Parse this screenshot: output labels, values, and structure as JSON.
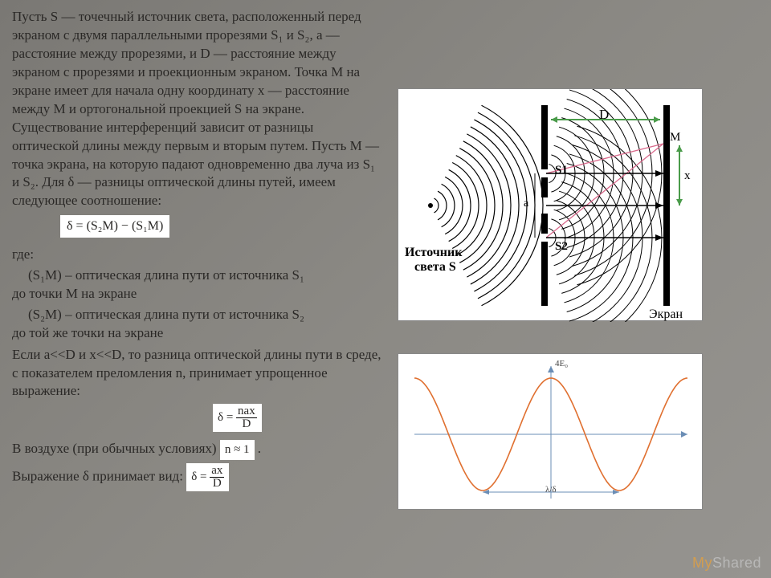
{
  "text": {
    "p1": "Пусть S — точечный источник света, расположенный перед экраном с двумя параллельными прорезями S₁ и S₂, a — расстояние между прорезями, и D — расстояние между экраном с прорезями и проекционным экраном. Точка M на экране имеет для начала одну координату x — расстояние между M и ортогональной проекцией S на экране. Существование интерференций зависит от разницы оптической длины между первым и вторым путем. Пусть M — точка экрана, на которую падают одновременно два луча из S₁ и S₂. Для δ — разницы оптической длины путей, имеем следующее соотношение:",
    "formula1": "δ = (S₂M) − (S₁M)",
    "where": "где:",
    "def1a": "(S₁M) – оптическая длина пути от источника S₁",
    "def1b": "до точки M на экране",
    "def2a": "(S₂M) – оптическая длина пути от источника S₂",
    "def2b": "до той же точки на экране",
    "p2": "Если a<<D и x<<D, то разница оптической длины пути в среде, с показателем преломления n, принимает упрощенное выражение:",
    "p3a": "В воздухе (при обычных условиях)",
    "p3c": ".",
    "p4": "Выражение δ принимает вид:",
    "n_approx": "n ≈ 1",
    "frac2_num": "nax",
    "frac2_den": "D",
    "frac3_num": "ax",
    "frac3_den": "D",
    "delta_eq": "δ = "
  },
  "diagram1": {
    "labels": {
      "D": "D",
      "M": "M",
      "S1": "S1",
      "S2": "S2",
      "x": "x",
      "a": "a",
      "source": "Источник",
      "source2": "света S",
      "screen": "Экран"
    },
    "colors": {
      "wave": "#000000",
      "ray": "#d96a8c",
      "barrier": "#000000",
      "green_arrow": "#4a9b4a",
      "bg": "#ffffff"
    }
  },
  "diagram2": {
    "type": "line",
    "title": "4E₀",
    "xlabel": "λ/δ",
    "curve_color": "#e07030",
    "axis_color": "#6a8db5",
    "bg": "#ffffff",
    "amplitude": 1,
    "periods": 2,
    "xrange": [
      -3.14159,
      3.14159
    ],
    "yrange": [
      -1.1,
      1.3
    ]
  },
  "watermark": {
    "my": "My",
    "shared": "Shared"
  }
}
